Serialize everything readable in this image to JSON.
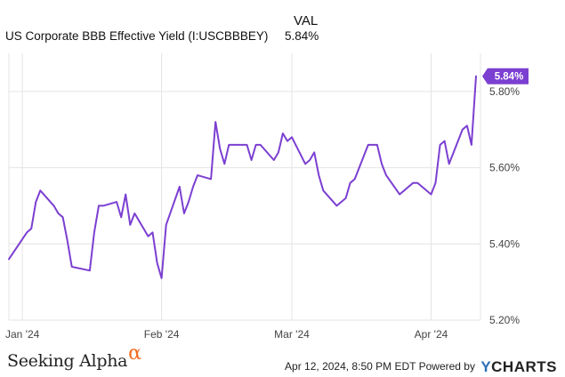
{
  "legend": {
    "value_header": "VAL",
    "series_name": "US Corporate BBB Effective Yield (I:USCBBBEY)",
    "series_value": "5.84%"
  },
  "footer": {
    "brand_left": "Seeking Alpha",
    "brand_left_mark": "α",
    "timestamp": "Apr 12, 2024, 8:50 PM EDT",
    "powered_by": "Powered by",
    "brand_right": "CHARTS",
    "brand_right_mark": "Y"
  },
  "colors": {
    "line": "#7b3fd1",
    "grid": "#e4e4e4",
    "badge_bg": "#7b3fd1",
    "badge_text": "#ffffff",
    "axis_text": "#444444"
  },
  "chart_data": {
    "type": "line",
    "title": "",
    "xlabel": "",
    "ylabel": "",
    "ylim": [
      5.2,
      5.9
    ],
    "yticks": [
      {
        "value": 5.2,
        "label": "5.20%"
      },
      {
        "value": 5.4,
        "label": "5.40%"
      },
      {
        "value": 5.6,
        "label": "5.60%"
      },
      {
        "value": 5.8,
        "label": "5.80%"
      }
    ],
    "xrange": [
      "2023-12-29",
      "2024-04-12"
    ],
    "xticks": [
      {
        "date": "2024-01-01",
        "label": "Jan '24"
      },
      {
        "date": "2024-02-01",
        "label": "Feb '24"
      },
      {
        "date": "2024-03-01",
        "label": "Mar '24"
      },
      {
        "date": "2024-04-01",
        "label": "Apr '24"
      }
    ],
    "grid": true,
    "end_label": "5.84%",
    "series": [
      {
        "name": "US Corporate BBB Effective Yield (I:USCBBBEY)",
        "points": [
          [
            "2023-12-29",
            5.36
          ],
          [
            "2024-01-02",
            5.43
          ],
          [
            "2024-01-03",
            5.44
          ],
          [
            "2024-01-04",
            5.51
          ],
          [
            "2024-01-05",
            5.54
          ],
          [
            "2024-01-08",
            5.5
          ],
          [
            "2024-01-09",
            5.48
          ],
          [
            "2024-01-10",
            5.47
          ],
          [
            "2024-01-11",
            5.41
          ],
          [
            "2024-01-12",
            5.34
          ],
          [
            "2024-01-16",
            5.33
          ],
          [
            "2024-01-17",
            5.43
          ],
          [
            "2024-01-18",
            5.5
          ],
          [
            "2024-01-19",
            5.5
          ],
          [
            "2024-01-22",
            5.51
          ],
          [
            "2024-01-23",
            5.47
          ],
          [
            "2024-01-24",
            5.53
          ],
          [
            "2024-01-25",
            5.45
          ],
          [
            "2024-01-26",
            5.48
          ],
          [
            "2024-01-29",
            5.42
          ],
          [
            "2024-01-30",
            5.43
          ],
          [
            "2024-01-31",
            5.35
          ],
          [
            "2024-02-01",
            5.31
          ],
          [
            "2024-02-02",
            5.45
          ],
          [
            "2024-02-05",
            5.55
          ],
          [
            "2024-02-06",
            5.48
          ],
          [
            "2024-02-07",
            5.51
          ],
          [
            "2024-02-08",
            5.55
          ],
          [
            "2024-02-09",
            5.58
          ],
          [
            "2024-02-12",
            5.57
          ],
          [
            "2024-02-13",
            5.72
          ],
          [
            "2024-02-14",
            5.65
          ],
          [
            "2024-02-15",
            5.61
          ],
          [
            "2024-02-16",
            5.66
          ],
          [
            "2024-02-20",
            5.66
          ],
          [
            "2024-02-21",
            5.62
          ],
          [
            "2024-02-22",
            5.66
          ],
          [
            "2024-02-23",
            5.66
          ],
          [
            "2024-02-26",
            5.62
          ],
          [
            "2024-02-27",
            5.64
          ],
          [
            "2024-02-28",
            5.69
          ],
          [
            "2024-02-29",
            5.67
          ],
          [
            "2024-03-01",
            5.68
          ],
          [
            "2024-03-04",
            5.61
          ],
          [
            "2024-03-05",
            5.62
          ],
          [
            "2024-03-06",
            5.64
          ],
          [
            "2024-03-07",
            5.58
          ],
          [
            "2024-03-08",
            5.54
          ],
          [
            "2024-03-11",
            5.5
          ],
          [
            "2024-03-12",
            5.51
          ],
          [
            "2024-03-13",
            5.52
          ],
          [
            "2024-03-14",
            5.56
          ],
          [
            "2024-03-15",
            5.57
          ],
          [
            "2024-03-18",
            5.66
          ],
          [
            "2024-03-19",
            5.66
          ],
          [
            "2024-03-20",
            5.66
          ],
          [
            "2024-03-21",
            5.61
          ],
          [
            "2024-03-22",
            5.58
          ],
          [
            "2024-03-25",
            5.53
          ],
          [
            "2024-03-26",
            5.54
          ],
          [
            "2024-03-27",
            5.55
          ],
          [
            "2024-03-28",
            5.56
          ],
          [
            "2024-03-29",
            5.56
          ],
          [
            "2024-04-01",
            5.53
          ],
          [
            "2024-04-02",
            5.56
          ],
          [
            "2024-04-03",
            5.66
          ],
          [
            "2024-04-04",
            5.67
          ],
          [
            "2024-04-05",
            5.61
          ],
          [
            "2024-04-08",
            5.7
          ],
          [
            "2024-04-09",
            5.71
          ],
          [
            "2024-04-10",
            5.66
          ],
          [
            "2024-04-11",
            5.84
          ]
        ]
      }
    ]
  }
}
